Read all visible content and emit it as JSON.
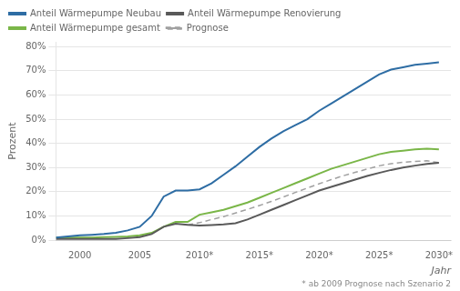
{
  "chart_data": {
    "type": "line",
    "ylabel": "Prozent",
    "xlabel": "Jahr",
    "annotations": [
      "* ab 2009 Prognose nach Szenario 2"
    ],
    "xlim": [
      1998,
      2031
    ],
    "ylim": [
      0,
      0.82
    ],
    "xticks": [
      2000,
      2005,
      {
        "value": 2010,
        "label": "2010*"
      },
      {
        "value": 2015,
        "label": "2015*"
      },
      {
        "value": 2020,
        "label": "2020*"
      },
      {
        "value": 2025,
        "label": "2025*"
      },
      {
        "value": 2030,
        "label": "2030*"
      }
    ],
    "yticks": [
      {
        "value": 0,
        "label": "0%"
      },
      {
        "value": 0.1,
        "label": "10%"
      },
      {
        "value": 0.2,
        "label": "20%"
      },
      {
        "value": 0.3,
        "label": "30%"
      },
      {
        "value": 0.4,
        "label": "40%"
      },
      {
        "value": 0.5,
        "label": "50%"
      },
      {
        "value": 0.6,
        "label": "60%"
      },
      {
        "value": 0.7,
        "label": "70%"
      },
      {
        "value": 0.8,
        "label": "80%"
      }
    ],
    "grid": "y",
    "legend": "upper left",
    "series": [
      {
        "name": "Anteil Wärmepumpe Neubau",
        "color": "#2e6da4",
        "line_style": "solid",
        "x": [
          1998,
          1999,
          2000,
          2001,
          2002,
          2003,
          2004,
          2005,
          2006,
          2007,
          2008,
          2009,
          2010,
          2011,
          2012,
          2013,
          2014,
          2015,
          2016,
          2017,
          2018,
          2019,
          2020,
          2021,
          2022,
          2023,
          2024,
          2025,
          2026,
          2027,
          2028,
          2029,
          2030
        ],
        "values": [
          0.01,
          0.015,
          0.02,
          0.022,
          0.025,
          0.03,
          0.04,
          0.055,
          0.1,
          0.18,
          0.205,
          0.205,
          0.21,
          0.235,
          0.27,
          0.305,
          0.345,
          0.385,
          0.42,
          0.45,
          0.475,
          0.5,
          0.535,
          0.565,
          0.595,
          0.625,
          0.655,
          0.685,
          0.705,
          0.715,
          0.725,
          0.73,
          0.735
        ]
      },
      {
        "name": "Anteil Wärmepumpe Renovierung",
        "color": "#595959",
        "line_style": "solid",
        "x": [
          1998,
          1999,
          2000,
          2001,
          2002,
          2003,
          2004,
          2005,
          2006,
          2007,
          2008,
          2009,
          2010,
          2011,
          2012,
          2013,
          2014,
          2015,
          2016,
          2017,
          2018,
          2019,
          2020,
          2021,
          2022,
          2023,
          2024,
          2025,
          2026,
          2027,
          2028,
          2029,
          2030
        ],
        "values": [
          0.005,
          0.005,
          0.005,
          0.005,
          0.005,
          0.005,
          0.008,
          0.012,
          0.025,
          0.055,
          0.068,
          0.063,
          0.06,
          0.062,
          0.065,
          0.07,
          0.085,
          0.105,
          0.125,
          0.145,
          0.165,
          0.185,
          0.205,
          0.22,
          0.235,
          0.25,
          0.265,
          0.278,
          0.29,
          0.3,
          0.308,
          0.315,
          0.32
        ]
      },
      {
        "name": "Anteil Wärmepumpe gesamt",
        "color": "#7ab648",
        "line_style": "solid",
        "x": [
          1998,
          1999,
          2000,
          2001,
          2002,
          2003,
          2004,
          2005,
          2006,
          2007,
          2008,
          2009,
          2010,
          2011,
          2012,
          2013,
          2014,
          2015,
          2016,
          2017,
          2018,
          2019,
          2020,
          2021,
          2022,
          2023,
          2024,
          2025,
          2026,
          2027,
          2028,
          2029,
          2030
        ],
        "values": [
          0.01,
          0.01,
          0.01,
          0.01,
          0.012,
          0.013,
          0.015,
          0.02,
          0.03,
          0.055,
          0.075,
          0.075,
          0.105,
          0.115,
          0.125,
          0.14,
          0.155,
          0.175,
          0.195,
          0.215,
          0.235,
          0.255,
          0.275,
          0.295,
          0.31,
          0.325,
          0.34,
          0.355,
          0.365,
          0.37,
          0.375,
          0.378,
          0.375
        ]
      },
      {
        "name": "Prognose",
        "color": "#a0a0a0",
        "line_style": "dashed",
        "x": [
          2009,
          2010,
          2011,
          2012,
          2013,
          2014,
          2015,
          2016,
          2017,
          2018,
          2019,
          2020,
          2021,
          2022,
          2023,
          2024,
          2025,
          2026,
          2027,
          2028,
          2029,
          2030
        ],
        "values": [
          0.063,
          0.072,
          0.085,
          0.097,
          0.112,
          0.127,
          0.143,
          0.16,
          0.178,
          0.197,
          0.215,
          0.233,
          0.25,
          0.266,
          0.28,
          0.294,
          0.307,
          0.316,
          0.322,
          0.325,
          0.328,
          0.32
        ]
      }
    ]
  }
}
